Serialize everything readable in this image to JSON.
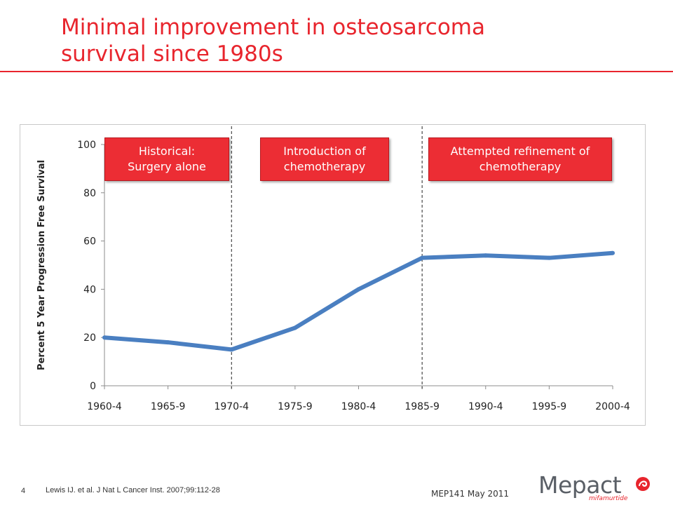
{
  "slide": {
    "title_line1": "Minimal improvement in osteosarcoma",
    "title_line2": "survival since 1980s",
    "number": "4",
    "citation": "Lewis IJ. et al. J Nat L Cancer Inst. 2007;99:112-28",
    "footer_code": "MEP141 May 2011"
  },
  "logo": {
    "word": "Mepact",
    "subtitle": "mifamurtide",
    "colors": {
      "text": "#5a5f66",
      "accent": "#e8252d"
    }
  },
  "colors": {
    "title": "#e8252d",
    "line": "#4a7fc1",
    "phase_box": "#ec2d34"
  },
  "chart_data": {
    "type": "line",
    "title": "",
    "xlabel": "",
    "ylabel": "Percent 5 Year Progression Free Survival",
    "categories": [
      "1960-4",
      "1965-9",
      "1970-4",
      "1975-9",
      "1980-4",
      "1985-9",
      "1990-4",
      "1995-9",
      "2000-4"
    ],
    "series": [
      {
        "values": [
          20,
          18,
          15,
          24,
          40,
          53,
          54,
          53,
          55
        ]
      }
    ],
    "ylim": [
      0,
      100
    ],
    "yticks": [
      0,
      20,
      40,
      60,
      80,
      100
    ],
    "grid": false,
    "legend": "none",
    "annotations": [
      {
        "text": "Historical: Surgery alone",
        "line1": "Historical:",
        "line2": "Surgery alone"
      },
      {
        "text": "Introduction of chemotherapy",
        "line1": "Introduction of",
        "line2": "chemotherapy"
      },
      {
        "text": "Attempted refinement of chemotherapy",
        "line1": "Attempted refinement of",
        "line2": "chemotherapy"
      }
    ],
    "phase_dividers_after": [
      "1965-9",
      "1980-4"
    ]
  }
}
